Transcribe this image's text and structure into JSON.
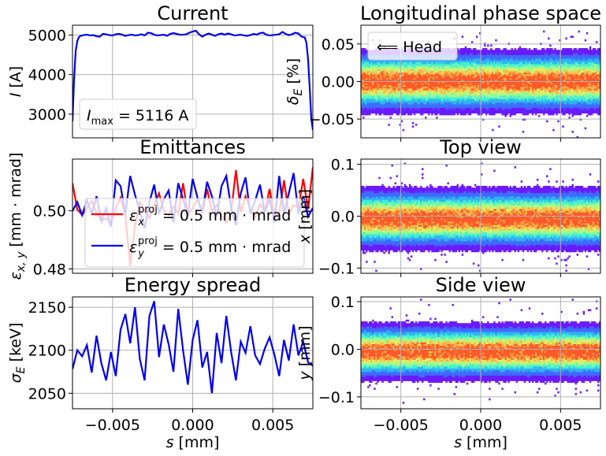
{
  "colors": {
    "line_blue": "#0000ee",
    "line_red": "#ff0000",
    "grid": "#b0b0b0",
    "colormap": [
      "#6a1bff",
      "#3f6bff",
      "#2fb4f0",
      "#44eed1",
      "#8efc9b",
      "#d8f068",
      "#ffb347",
      "#ff5a2a"
    ]
  },
  "chart_data": [
    {
      "id": "current",
      "type": "line",
      "title": "Current",
      "xlabel": "",
      "ylabel": "I [A]",
      "xlim": [
        -0.0075,
        0.0075
      ],
      "ylim": [
        2400,
        5250
      ],
      "yticks": [
        3000,
        4000,
        5000
      ],
      "ytick_labels": [
        "3000",
        "4000",
        "5000"
      ],
      "grid": true,
      "annotation": "I_max = 5116 A",
      "series": [
        {
          "color": "#0000ee",
          "x": [
            -0.0075,
            -0.0074,
            -0.0073,
            -0.0072,
            -0.0071,
            -0.007,
            -0.0068,
            -0.0066,
            -0.0064,
            -0.0062,
            -0.006,
            -0.0058,
            -0.0056,
            -0.0054,
            -0.0052,
            -0.005,
            -0.0048,
            -0.0046,
            -0.0044,
            -0.0042,
            -0.004,
            -0.0038,
            -0.0036,
            -0.0034,
            -0.0032,
            -0.003,
            -0.0028,
            -0.0026,
            -0.0024,
            -0.0022,
            -0.002,
            -0.0018,
            -0.0016,
            -0.0014,
            -0.0012,
            -0.001,
            -0.0008,
            -0.0006,
            -0.0004,
            -0.0002,
            0.0,
            0.0002,
            0.0004,
            0.0006,
            0.0008,
            0.001,
            0.0012,
            0.0014,
            0.0016,
            0.0018,
            0.002,
            0.0022,
            0.0024,
            0.0026,
            0.0028,
            0.003,
            0.0032,
            0.0034,
            0.0036,
            0.0038,
            0.004,
            0.0042,
            0.0044,
            0.0046,
            0.0048,
            0.005,
            0.0052,
            0.0054,
            0.0056,
            0.0058,
            0.006,
            0.0062,
            0.0064,
            0.0066,
            0.0068,
            0.007,
            0.0071,
            0.0072,
            0.0073,
            0.0074,
            0.0075
          ],
          "y": [
            2820,
            3900,
            4600,
            4850,
            4950,
            4980,
            5000,
            5010,
            4990,
            5000,
            4970,
            4960,
            5030,
            5020,
            5000,
            4990,
            5020,
            5030,
            5010,
            4980,
            5000,
            5010,
            4990,
            5000,
            5020,
            4990,
            5060,
            5050,
            5010,
            4990,
            5000,
            5010,
            4980,
            5030,
            5050,
            5030,
            5010,
            5010,
            5020,
            5060,
            5090,
            5110,
            5020,
            4960,
            5010,
            5040,
            5010,
            4980,
            5020,
            5040,
            5010,
            5040,
            5020,
            4990,
            5000,
            5010,
            4990,
            4980,
            5000,
            5030,
            5010,
            5050,
            5060,
            5010,
            4990,
            5000,
            5010,
            5020,
            5080,
            5030,
            5000,
            5020,
            5060,
            5040,
            4960,
            4940,
            4800,
            4400,
            3700,
            2900,
            2600
          ]
        }
      ]
    },
    {
      "id": "lps",
      "type": "heatmap",
      "title": "Longitudinal phase space",
      "xlabel": "",
      "ylabel": "δ_E [%]",
      "xlim": [
        -0.0075,
        0.0075
      ],
      "ylim": [
        -0.075,
        0.075
      ],
      "yticks": [
        -0.05,
        0.0,
        0.05
      ],
      "ytick_labels": [
        "−0.05",
        "0.00",
        "0.05"
      ],
      "grid": true,
      "legend": "⟸ Head",
      "band_center": 0.0,
      "band_sigma": 0.0175
    },
    {
      "id": "emit",
      "type": "line",
      "title": "Emittances",
      "xlabel": "",
      "ylabel": "ε_x,y [mm · mrad]",
      "xlim": [
        -0.0075,
        0.0075
      ],
      "ylim": [
        0.4785,
        0.5178
      ],
      "yticks": [
        0.48,
        0.5
      ],
      "ytick_labels": [
        "0.48",
        "0.50"
      ],
      "grid": true,
      "legend_placement": "bottom-center",
      "series": [
        {
          "name": "εx^proj = 0.5 mm · mrad",
          "color": "#ff0000",
          "x": [
            -0.0075,
            -0.0072,
            -0.0069,
            -0.0066,
            -0.0063,
            -0.006,
            -0.0057,
            -0.0054,
            -0.0051,
            -0.0048,
            -0.0045,
            -0.0042,
            -0.0039,
            -0.0036,
            -0.0033,
            -0.003,
            -0.0027,
            -0.0024,
            -0.0021,
            -0.0018,
            -0.0015,
            -0.0012,
            -0.0009,
            -0.0006,
            -0.0003,
            0.0,
            0.0003,
            0.0006,
            0.0009,
            0.0012,
            0.0015,
            0.0018,
            0.0021,
            0.0024,
            0.0027,
            0.003,
            0.0033,
            0.0036,
            0.0039,
            0.0042,
            0.0045,
            0.0048,
            0.0051,
            0.0054,
            0.0057,
            0.006,
            0.0063,
            0.0066,
            0.0069,
            0.0072,
            0.0075
          ],
          "y": [
            0.5095,
            0.5005,
            0.4985,
            0.501,
            0.5035,
            0.4995,
            0.4965,
            0.4975,
            0.4955,
            0.501,
            0.5045,
            0.4985,
            0.481,
            0.495,
            0.503,
            0.5,
            0.4975,
            0.502,
            0.506,
            0.5,
            0.4985,
            0.5015,
            0.499,
            0.5095,
            0.4985,
            0.501,
            0.504,
            0.4995,
            0.5075,
            0.5,
            0.502,
            0.4985,
            0.496,
            0.4995,
            0.514,
            0.4995,
            0.505,
            0.5005,
            0.498,
            0.5025,
            0.4995,
            0.5075,
            0.4985,
            0.499,
            0.5105,
            0.499,
            0.502,
            0.501,
            0.511,
            0.5005,
            0.515
          ]
        },
        {
          "name": "εy^proj = 0.5 mm · mrad",
          "color": "#0000ee",
          "x": [
            -0.0075,
            -0.0072,
            -0.0069,
            -0.0066,
            -0.0063,
            -0.006,
            -0.0057,
            -0.0054,
            -0.0051,
            -0.0048,
            -0.0045,
            -0.0042,
            -0.0039,
            -0.0036,
            -0.0033,
            -0.003,
            -0.0027,
            -0.0024,
            -0.0021,
            -0.0018,
            -0.0015,
            -0.0012,
            -0.0009,
            -0.0006,
            -0.0003,
            0.0,
            0.0003,
            0.0006,
            0.0009,
            0.0012,
            0.0015,
            0.0018,
            0.0021,
            0.0024,
            0.0027,
            0.003,
            0.0033,
            0.0036,
            0.0039,
            0.0042,
            0.0045,
            0.0048,
            0.0051,
            0.0054,
            0.0057,
            0.006,
            0.0063,
            0.0066,
            0.0069,
            0.0072,
            0.0075
          ],
          "y": [
            0.5,
            0.503,
            0.4985,
            0.5035,
            0.499,
            0.505,
            0.4965,
            0.501,
            0.4945,
            0.5105,
            0.5085,
            0.499,
            0.512,
            0.5055,
            0.5,
            0.494,
            0.503,
            0.509,
            0.499,
            0.504,
            0.507,
            0.496,
            0.5095,
            0.504,
            0.4985,
            0.511,
            0.5045,
            0.4995,
            0.51,
            0.505,
            0.498,
            0.5085,
            0.512,
            0.501,
            0.495,
            0.506,
            0.5115,
            0.499,
            0.5035,
            0.509,
            0.4995,
            0.504,
            0.496,
            0.512,
            0.499,
            0.506,
            0.513,
            0.499,
            0.505,
            0.498,
            0.501
          ]
        }
      ]
    },
    {
      "id": "top",
      "type": "heatmap",
      "title": "Top view",
      "xlabel": "",
      "ylabel": "x [mm]",
      "xlim": [
        -0.0075,
        0.0075
      ],
      "ylim": [
        -0.11,
        0.11
      ],
      "yticks": [
        -0.1,
        0.0,
        0.1
      ],
      "ytick_labels": [
        "−0.1",
        "0.0",
        "0.1"
      ],
      "grid": true,
      "band_center": -0.005,
      "band_sigma": 0.025
    },
    {
      "id": "spread",
      "type": "line",
      "title": "Energy spread",
      "xlabel": "s [mm]",
      "ylabel": "σ_E [keV]",
      "xlim": [
        -0.0075,
        0.0075
      ],
      "ylim": [
        2032,
        2162
      ],
      "yticks": [
        2050,
        2100,
        2150
      ],
      "ytick_labels": [
        "2050",
        "2100",
        "2150"
      ],
      "xticks": [
        -0.005,
        0.0,
        0.005
      ],
      "xtick_labels": [
        "−0.005",
        "0.000",
        "0.005"
      ],
      "grid": true,
      "series": [
        {
          "color": "#0000ee",
          "x": [
            -0.0075,
            -0.0072,
            -0.0069,
            -0.0066,
            -0.0063,
            -0.006,
            -0.0057,
            -0.0054,
            -0.0051,
            -0.0048,
            -0.0045,
            -0.0042,
            -0.0039,
            -0.0036,
            -0.0033,
            -0.003,
            -0.0027,
            -0.0024,
            -0.0021,
            -0.0018,
            -0.0015,
            -0.0012,
            -0.0009,
            -0.0006,
            -0.0003,
            0.0,
            0.0003,
            0.0006,
            0.0009,
            0.0012,
            0.0015,
            0.0018,
            0.0021,
            0.0024,
            0.0027,
            0.003,
            0.0033,
            0.0036,
            0.0039,
            0.0042,
            0.0045,
            0.0048,
            0.0051,
            0.0054,
            0.0057,
            0.006,
            0.0063,
            0.0066,
            0.0069,
            0.0072,
            0.0075
          ],
          "y": [
            2078,
            2100,
            2093,
            2106,
            2074,
            2117,
            2085,
            2065,
            2098,
            2070,
            2124,
            2142,
            2108,
            2150,
            2090,
            2065,
            2140,
            2157,
            2092,
            2130,
            2107,
            2075,
            2148,
            2100,
            2060,
            2112,
            2135,
            2080,
            2098,
            2050,
            2120,
            2085,
            2140,
            2098,
            2065,
            2110,
            2097,
            2128,
            2094,
            2084,
            2102,
            2115,
            2095,
            2070,
            2112,
            2088,
            2130,
            2094,
            2110,
            2086,
            2082
          ]
        }
      ]
    },
    {
      "id": "side",
      "type": "heatmap",
      "title": "Side view",
      "xlabel": "s [mm]",
      "ylabel": "y [mm]",
      "xlim": [
        -0.0075,
        0.0075
      ],
      "ylim": [
        -0.125,
        0.11
      ],
      "yticks": [
        -0.1,
        0.0,
        0.1
      ],
      "ytick_labels": [
        "−0.1",
        "0.0",
        "0.1"
      ],
      "xticks": [
        -0.005,
        0.0,
        0.005
      ],
      "xtick_labels": [
        "−0.005",
        "0.000",
        "0.005"
      ],
      "grid": true,
      "band_center": -0.005,
      "band_sigma": 0.025
    }
  ]
}
